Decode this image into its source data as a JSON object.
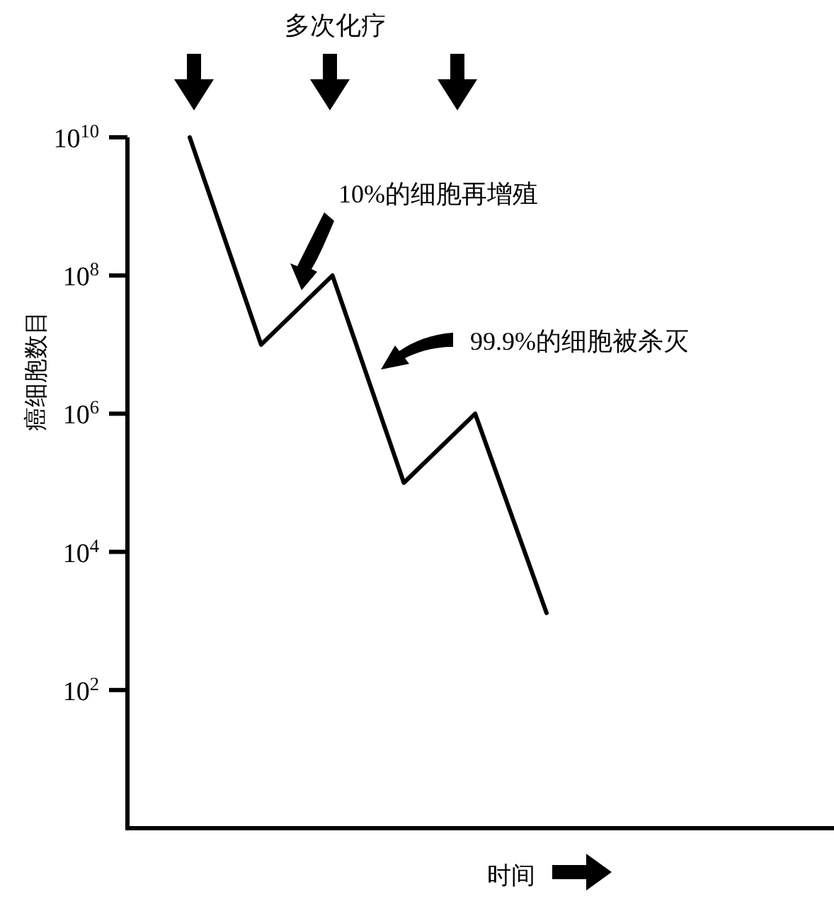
{
  "chart_data": {
    "type": "line",
    "categories": [
      null,
      null,
      null,
      null,
      null,
      null
    ],
    "values": [
      10000000000.0,
      10000000.0,
      100000000.0,
      100000.0,
      1000000.0,
      1300
    ],
    "color": "#000000",
    "line_style": "solid",
    "log": true,
    "ylim": [
      1,
      10000000000.0
    ],
    "yticks": [
      {
        "value": 100,
        "label": "10$^{2}$"
      },
      {
        "value": 10000,
        "label": "10$^{4}$"
      },
      {
        "value": 1000000,
        "label": "10$^{6}$"
      },
      {
        "value": 100000000,
        "label": "10$^{8}$"
      },
      {
        "value": 10000000000,
        "label": "10$^{10}$"
      }
    ],
    "xlabel": "时间",
    "ylabel": "癌细胞数目",
    "annotations": [
      "多次化疗",
      "10%的细胞再增殖",
      "99.9%的细胞被杀灭"
    ]
  }
}
